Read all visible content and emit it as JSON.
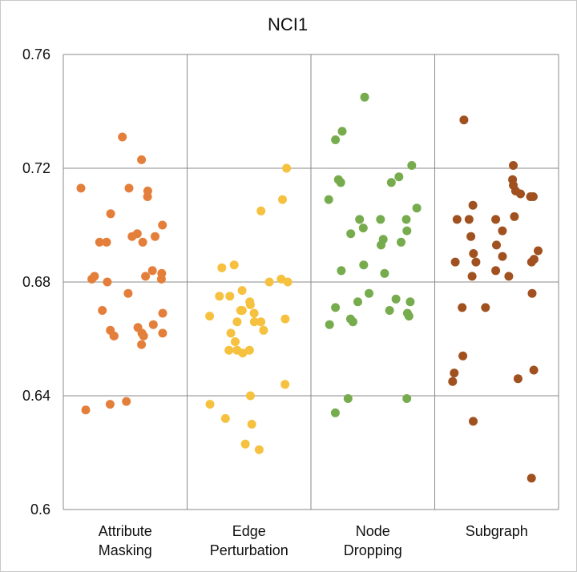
{
  "chart_data": {
    "type": "scatter",
    "title": "NCI1",
    "xlabel": "",
    "ylabel": "",
    "ylim": [
      0.6,
      0.76
    ],
    "y_ticks": [
      "0.6",
      "0.64",
      "0.68",
      "0.72",
      "0.76"
    ],
    "grid": true,
    "categories": [
      {
        "lines": [
          "Attribute",
          "Masking"
        ]
      },
      {
        "lines": [
          "Edge",
          "Perturbation"
        ]
      },
      {
        "lines": [
          "Node",
          "Dropping"
        ]
      },
      {
        "lines": [
          "Subgraph"
        ]
      }
    ],
    "series": [
      {
        "color": "#e47f3b",
        "values": [
          0.713,
          0.7,
          0.694,
          0.694,
          0.682,
          0.676,
          0.637,
          0.71,
          0.712,
          0.713,
          0.723,
          0.697,
          0.665,
          0.67,
          0.661,
          0.661,
          0.694,
          0.635,
          0.658,
          0.731,
          0.662,
          0.684,
          0.681,
          0.638,
          0.669,
          0.662,
          0.664,
          0.696,
          0.683,
          0.681,
          0.661,
          0.704,
          0.696,
          0.663,
          0.682,
          0.68
        ]
      },
      {
        "color": "#f5c13f",
        "values": [
          0.655,
          0.662,
          0.68,
          0.669,
          0.68,
          0.709,
          0.637,
          0.656,
          0.666,
          0.673,
          0.677,
          0.685,
          0.667,
          0.668,
          0.666,
          0.659,
          0.663,
          0.72,
          0.672,
          0.675,
          0.67,
          0.675,
          0.656,
          0.67,
          0.686,
          0.63,
          0.621,
          0.632,
          0.644,
          0.623,
          0.681,
          0.705,
          0.666,
          0.64,
          0.656
        ]
      },
      {
        "color": "#77ac4e",
        "values": [
          0.67,
          0.721,
          0.686,
          0.715,
          0.697,
          0.702,
          0.702,
          0.673,
          0.699,
          0.717,
          0.702,
          0.716,
          0.694,
          0.671,
          0.745,
          0.733,
          0.73,
          0.706,
          0.639,
          0.683,
          0.684,
          0.676,
          0.693,
          0.715,
          0.673,
          0.639,
          0.669,
          0.698,
          0.668,
          0.674,
          0.666,
          0.665,
          0.667,
          0.634,
          0.709,
          0.695
        ]
      },
      {
        "color": "#a0511f",
        "values": [
          0.707,
          0.646,
          0.702,
          0.721,
          0.69,
          0.71,
          0.631,
          0.671,
          0.687,
          0.654,
          0.684,
          0.645,
          0.71,
          0.682,
          0.688,
          0.648,
          0.676,
          0.702,
          0.691,
          0.689,
          0.716,
          0.687,
          0.682,
          0.696,
          0.698,
          0.702,
          0.711,
          0.703,
          0.712,
          0.693,
          0.687,
          0.671,
          0.649,
          0.737,
          0.714,
          0.611
        ]
      }
    ]
  }
}
